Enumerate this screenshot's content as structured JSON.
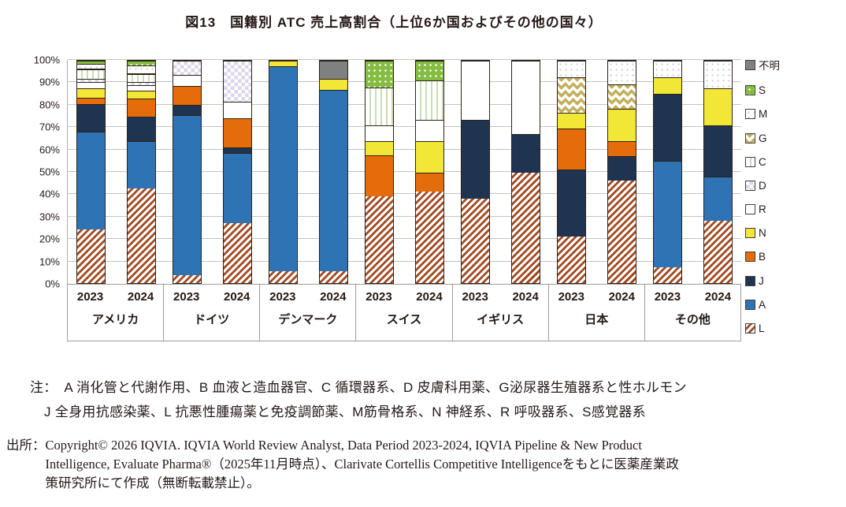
{
  "title": "図13　国籍別 ATC 売上高割合（上位6か国およびその他の国々）",
  "chart_data": {
    "type": "bar",
    "stacked": true,
    "unit": "percent",
    "title": "図13　国籍別 ATC 売上高割合（上位6か国およびその他の国々）",
    "y_axis": {
      "min": 0,
      "max": 100,
      "step": 10,
      "tick_suffix": "%",
      "ticks": [
        0,
        10,
        20,
        30,
        40,
        50,
        60,
        70,
        80,
        90,
        100
      ]
    },
    "years": [
      "2023",
      "2024"
    ],
    "stack_order_bottom_to_top": [
      "L",
      "A",
      "J",
      "B",
      "N",
      "R",
      "D",
      "C",
      "G",
      "M",
      "S",
      "不明"
    ],
    "legend_top_to_bottom": [
      {
        "key": "不明",
        "label": "不明",
        "color": "#808080",
        "pattern": "solid-gray"
      },
      {
        "key": "S",
        "label": "S",
        "color": "#84bd41",
        "pattern": "white-dots-on-green"
      },
      {
        "key": "M",
        "label": "M",
        "color": "#ffffff",
        "pattern": "faint-dots"
      },
      {
        "key": "G",
        "label": "G",
        "color": "#c3af5b",
        "pattern": "zigzag"
      },
      {
        "key": "C",
        "label": "C",
        "color": "#cbdcb5",
        "pattern": "vertical-lines"
      },
      {
        "key": "D",
        "label": "D",
        "color": "#ded5ea",
        "pattern": "checker"
      },
      {
        "key": "R",
        "label": "R",
        "color": "#ffffff",
        "pattern": "plain-white"
      },
      {
        "key": "N",
        "label": "N",
        "color": "#f2e637",
        "pattern": "solid-yellow"
      },
      {
        "key": "B",
        "label": "B",
        "color": "#e46c0a",
        "pattern": "solid-orange"
      },
      {
        "key": "J",
        "label": "J",
        "color": "#1f3450",
        "pattern": "solid-navy"
      },
      {
        "key": "A",
        "label": "A",
        "color": "#2e74b5",
        "pattern": "solid-blue"
      },
      {
        "key": "L",
        "label": "L",
        "color": "#a34a21",
        "pattern": "diagonal-hatch"
      }
    ],
    "groups": [
      {
        "label": "アメリカ",
        "bars": [
          {
            "year": "2023",
            "values": {
              "L": 24,
              "A": 44,
              "J": 12.5,
              "B": 3,
              "N": 4,
              "R": 3,
              "D": 1.5,
              "C": 4,
              "G": 0.5,
              "M": 2,
              "S": 1.5
            }
          },
          {
            "year": "2024",
            "values": {
              "L": 42.5,
              "A": 21.5,
              "J": 11,
              "B": 8,
              "N": 3.5,
              "R": 2.5,
              "D": 1.5,
              "C": 3.5,
              "G": 0.5,
              "M": 3.5,
              "S": 2
            }
          }
        ]
      },
      {
        "label": "ドイツ",
        "bars": [
          {
            "year": "2023",
            "values": {
              "L": 3.5,
              "A": 72,
              "J": 4.5,
              "B": 8.5,
              "R": 5,
              "D": 6.5
            }
          },
          {
            "year": "2024",
            "values": {
              "L": 27,
              "A": 31.5,
              "J": 2.5,
              "B": 13,
              "R": 7.5,
              "D": 18.5
            }
          }
        ]
      },
      {
        "label": "デンマーク",
        "bars": [
          {
            "year": "2023",
            "values": {
              "L": 5.5,
              "A": 92,
              "N": 2.5
            }
          },
          {
            "year": "2024",
            "values": {
              "L": 5.5,
              "A": 81.5,
              "N": 5,
              "不明": 8
            }
          }
        ]
      },
      {
        "label": "スイス",
        "bars": [
          {
            "year": "2023",
            "values": {
              "L": 39,
              "B": 18.5,
              "N": 6.5,
              "R": 7,
              "C": 17,
              "S": 12
            }
          },
          {
            "year": "2024",
            "values": {
              "L": 41,
              "B": 8.5,
              "N": 14.5,
              "R": 9.5,
              "C": 17.5,
              "S": 9
            }
          }
        ]
      },
      {
        "label": "イギリス",
        "bars": [
          {
            "year": "2023",
            "values": {
              "L": 38,
              "J": 35.5,
              "R": 26.5
            }
          },
          {
            "year": "2024",
            "values": {
              "L": 49.5,
              "J": 17.5,
              "R": 33
            }
          }
        ]
      },
      {
        "label": "日本",
        "bars": [
          {
            "year": "2023",
            "values": {
              "L": 21,
              "J": 30,
              "B": 18.5,
              "N": 7,
              "G": 16,
              "M": 7.5
            }
          },
          {
            "year": "2024",
            "values": {
              "L": 46,
              "J": 11,
              "B": 7,
              "N": 14.5,
              "G": 11,
              "M": 10.5
            }
          }
        ]
      },
      {
        "label": "その他",
        "bars": [
          {
            "year": "2023",
            "values": {
              "L": 7,
              "A": 48,
              "J": 30,
              "N": 7.5,
              "M": 7.5
            }
          },
          {
            "year": "2024",
            "values": {
              "L": 28,
              "A": 20,
              "J": 23,
              "N": 16.5,
              "M": 12.5
            }
          }
        ]
      }
    ]
  },
  "notes": {
    "line1": "注：　A 消化管と代謝作用、B 血液と造血器官、C 循環器系、D 皮膚科用薬、G泌尿器生殖器系と性ホルモン",
    "line2": "J 全身用抗感染薬、L 抗悪性腫瘍薬と免疫調節薬、M筋骨格系、N 神経系、R 呼吸器系、S感覚器系"
  },
  "source": {
    "prefix": "出所：",
    "line1": "Copyright© 2026 IQVIA. IQVIA World Review Analyst, Data Period 2023-2024, IQVIA Pipeline & New Product",
    "line2": "Intelligence, Evaluate Pharma®（2025年11月時点）、Clarivate Cortellis Competitive Intelligenceをもとに医薬産業政",
    "line3": "策研究所にて作成（無断転載禁止）。"
  }
}
